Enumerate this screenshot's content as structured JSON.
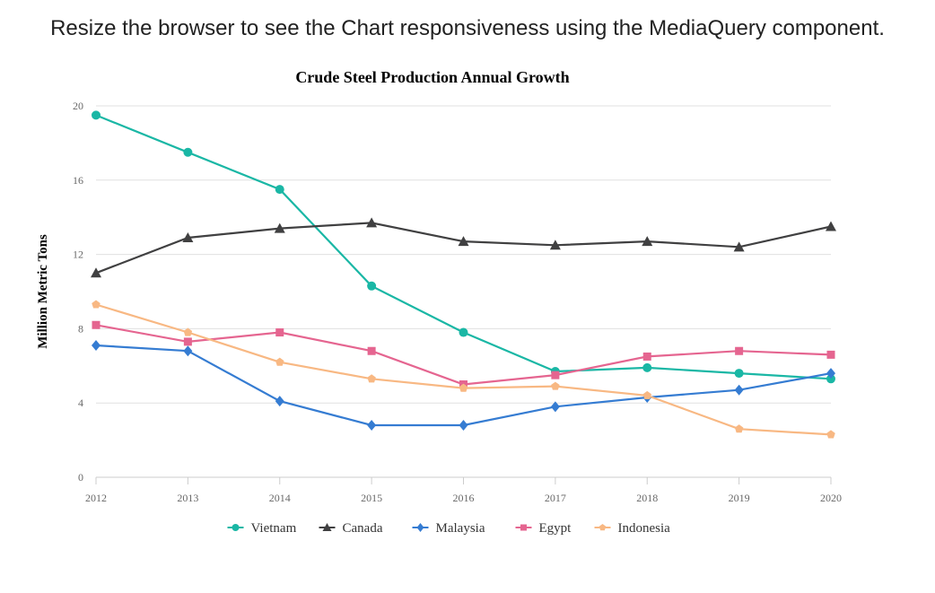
{
  "page": {
    "heading": "Resize the browser to see the Chart responsiveness using the MediaQuery component."
  },
  "chart_data": {
    "type": "line",
    "title": "Crude Steel Production Annual Growth",
    "xlabel": "",
    "ylabel": "Million Metric Tons",
    "x": [
      "2012",
      "2013",
      "2014",
      "2015",
      "2016",
      "2017",
      "2018",
      "2019",
      "2020"
    ],
    "ylim": [
      0,
      20
    ],
    "yticks": [
      0,
      4,
      8,
      12,
      16,
      20
    ],
    "grid": true,
    "legend_position": "bottom",
    "series": [
      {
        "name": "Vietnam",
        "color": "#1ab7a5",
        "marker": "circle",
        "values": [
          19.5,
          17.5,
          15.5,
          10.3,
          7.8,
          5.7,
          5.9,
          5.6,
          5.3
        ]
      },
      {
        "name": "Canada",
        "color": "#404041",
        "marker": "triangle",
        "values": [
          11.0,
          12.9,
          13.4,
          13.7,
          12.7,
          12.5,
          12.7,
          12.4,
          13.5
        ]
      },
      {
        "name": "Malaysia",
        "color": "#357cd2",
        "marker": "diamond",
        "values": [
          7.1,
          6.8,
          4.1,
          2.8,
          2.8,
          3.8,
          4.3,
          4.7,
          5.6
        ]
      },
      {
        "name": "Egypt",
        "color": "#e56590",
        "marker": "square",
        "values": [
          8.2,
          7.3,
          7.8,
          6.8,
          5.0,
          5.5,
          6.5,
          6.8,
          6.6
        ]
      },
      {
        "name": "Indonesia",
        "color": "#f8b883",
        "marker": "pentagon",
        "values": [
          9.3,
          7.8,
          6.2,
          5.3,
          4.8,
          4.9,
          4.4,
          2.6,
          2.3
        ]
      }
    ]
  }
}
